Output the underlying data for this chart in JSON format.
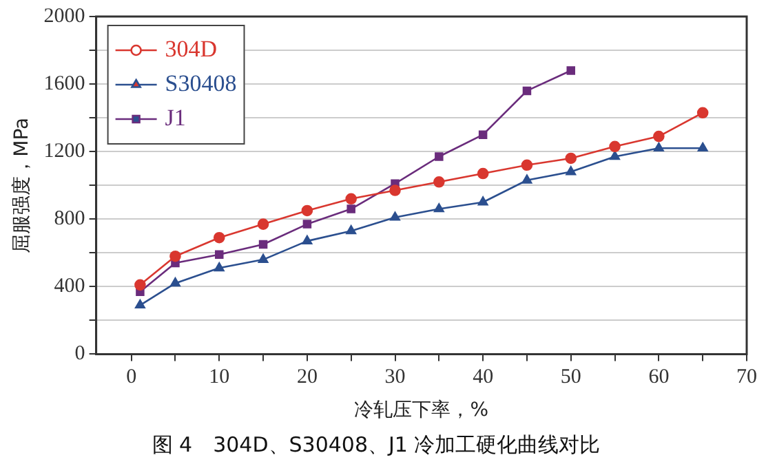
{
  "chart_data": {
    "type": "line",
    "title": "图 4　304D、S30408、J1 冷加工硬化曲线对比",
    "xlabel": "冷轧压下率，%",
    "ylabel": "屈服强度，MPa",
    "x": [
      1,
      5,
      10,
      15,
      20,
      25,
      30,
      35,
      40,
      45,
      50,
      55,
      60,
      65
    ],
    "series": [
      {
        "name": "304D",
        "color": "#d9372f",
        "marker": "circle",
        "values": [
          410,
          580,
          690,
          770,
          850,
          920,
          970,
          1020,
          1070,
          1120,
          1160,
          1230,
          1290,
          1430
        ]
      },
      {
        "name": "S30408",
        "color": "#2b4f8f",
        "marker": "triangle",
        "values": [
          290,
          420,
          510,
          560,
          670,
          730,
          810,
          860,
          900,
          1030,
          1080,
          1170,
          1220,
          1220
        ]
      },
      {
        "name": "J1",
        "color": "#6a2c7c",
        "marker": "square",
        "values": [
          370,
          540,
          590,
          650,
          770,
          860,
          1010,
          1170,
          1300,
          1560,
          1680,
          null,
          null,
          null
        ]
      }
    ],
    "xlim": [
      -4,
      70
    ],
    "xticks": [
      0,
      {
        "value": 5,
        "label": null
      },
      10,
      {
        "value": 15,
        "label": null
      },
      20,
      {
        "value": 25,
        "label": null
      },
      30,
      {
        "value": 35,
        "label": null
      },
      40,
      {
        "value": 45,
        "label": null
      },
      50,
      {
        "value": 55,
        "label": null
      },
      60,
      {
        "value": 65,
        "label": null
      },
      70
    ],
    "ylim": [
      0,
      2000
    ],
    "yticks": [
      0,
      {
        "value": 200,
        "label": null
      },
      400,
      {
        "value": 600,
        "label": null
      },
      800,
      {
        "value": 1000,
        "label": null
      },
      1200,
      {
        "value": 1400,
        "label": null
      },
      1600,
      {
        "value": 1800,
        "label": null
      },
      2000
    ],
    "grid": "y",
    "legend": "top left",
    "line_style": "solid"
  }
}
